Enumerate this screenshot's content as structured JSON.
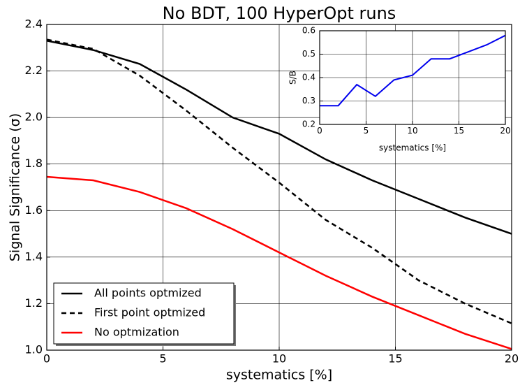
{
  "chart_data": [
    {
      "type": "line",
      "title": "No BDT, 100 HyperOpt runs",
      "x_label": "systematics [%]",
      "y_label": "Signal Significance (σ)",
      "x": [
        0,
        2,
        4,
        6,
        8,
        10,
        12,
        14,
        16,
        18,
        20
      ],
      "series": [
        {
          "name": "All points optmized",
          "color": "#000000",
          "dash": false,
          "values": [
            2.33,
            2.29,
            2.23,
            2.12,
            2.0,
            1.93,
            1.82,
            1.73,
            1.65,
            1.57,
            1.5
          ]
        },
        {
          "name": "First point optmized",
          "color": "#000000",
          "dash": true,
          "values": [
            2.335,
            2.295,
            2.18,
            2.03,
            1.87,
            1.72,
            1.56,
            1.44,
            1.3,
            1.2,
            1.115
          ]
        },
        {
          "name": "No optmization",
          "color": "#ff0000",
          "dash": false,
          "values": [
            1.745,
            1.73,
            1.68,
            1.61,
            1.52,
            1.42,
            1.32,
            1.23,
            1.15,
            1.07,
            1.005
          ]
        }
      ],
      "xlim": [
        0,
        20
      ],
      "xticks": [
        0,
        5,
        10,
        15,
        20
      ],
      "ylim": [
        1.0,
        2.4
      ],
      "yticks": [
        {
          "value": 1.0,
          "label": "1.0"
        },
        1.2,
        1.4,
        1.6,
        1.8,
        {
          "value": 2.0,
          "label": "2.0"
        },
        2.2,
        2.4
      ],
      "grid": true,
      "legend": "lower left"
    },
    {
      "type": "line",
      "x_label": "systematics [%]",
      "y_label": "S/B",
      "x": [
        0,
        2,
        4,
        6,
        8,
        10,
        12,
        14,
        16,
        18,
        20
      ],
      "series": [
        {
          "color": "#0000ee",
          "dash": false,
          "values": [
            0.28,
            0.28,
            0.37,
            0.32,
            0.39,
            0.41,
            0.48,
            0.48,
            0.51,
            0.54,
            0.58
          ]
        }
      ],
      "xlim": [
        0,
        20
      ],
      "xticks": [
        0,
        5,
        10,
        15,
        20
      ],
      "ylim": [
        0.2,
        0.6
      ],
      "yticks": [
        0.2,
        0.3,
        0.4,
        0.5,
        0.6
      ],
      "grid": true
    }
  ]
}
